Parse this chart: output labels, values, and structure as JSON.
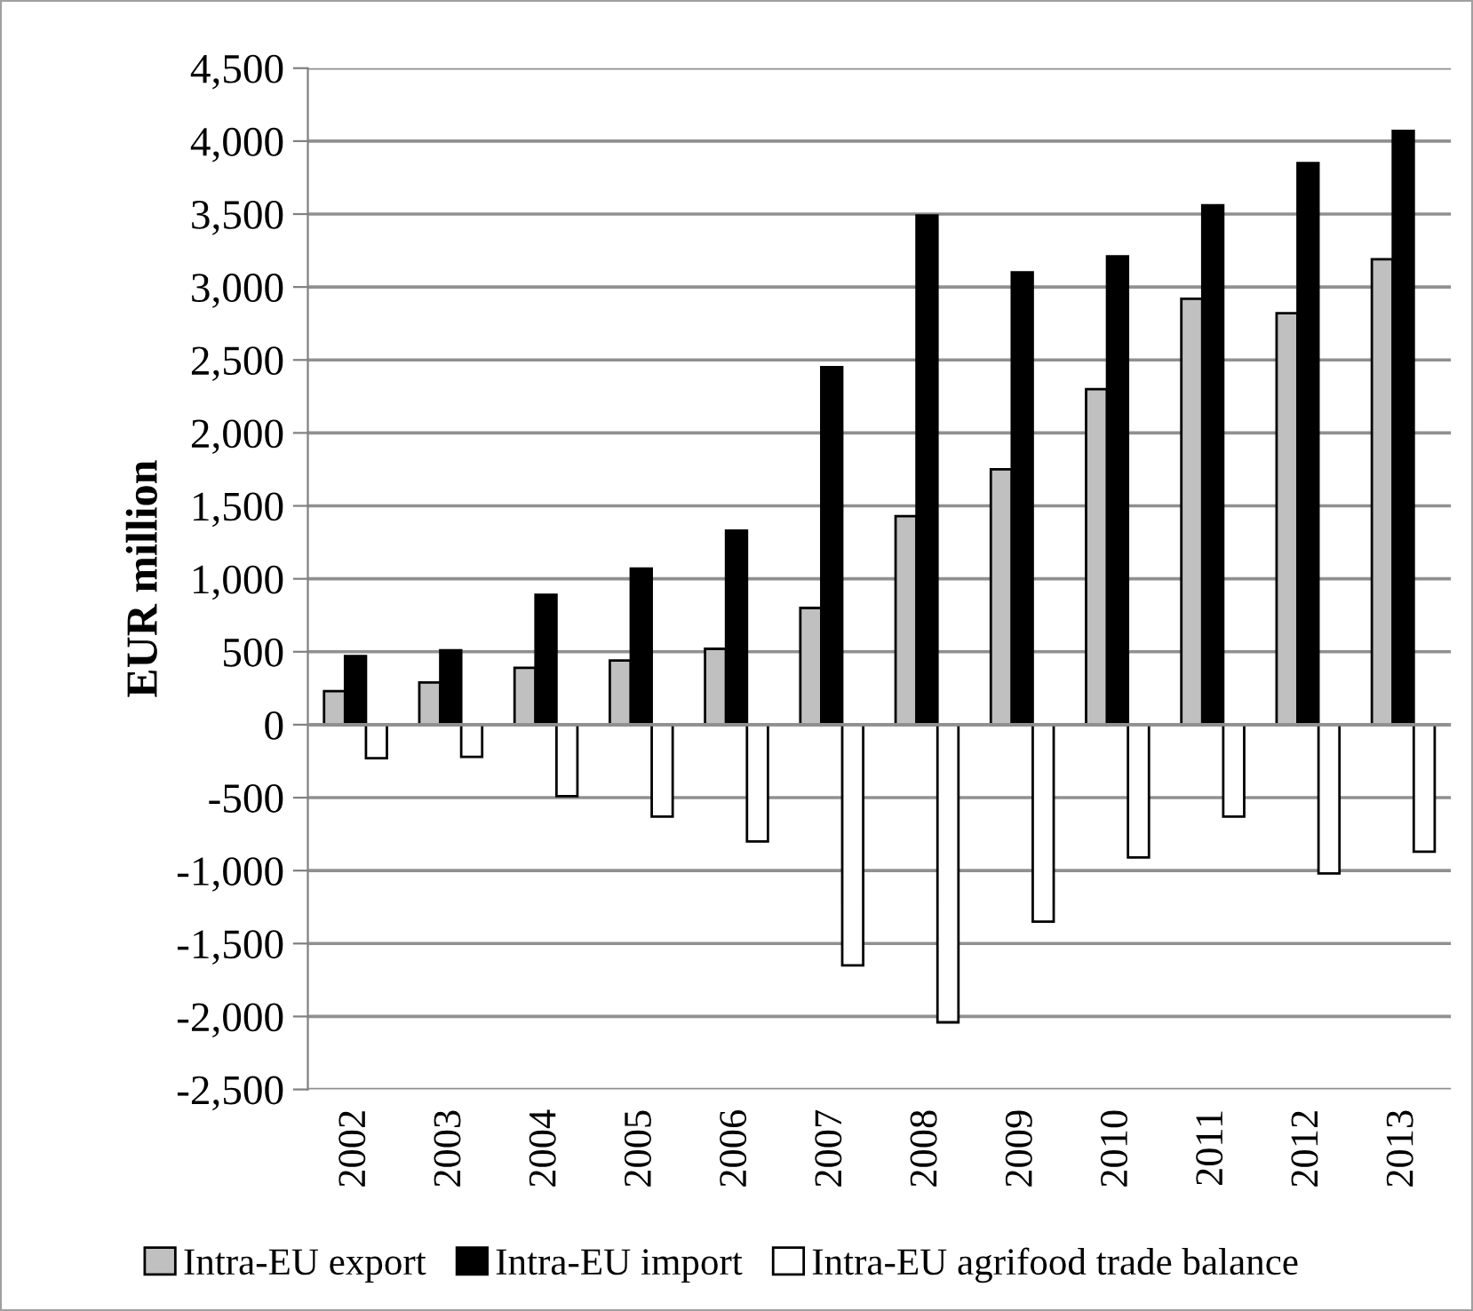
{
  "chart_data": {
    "type": "bar",
    "ylabel": "EUR million",
    "categories": [
      "2002",
      "2003",
      "2004",
      "2005",
      "2006",
      "2007",
      "2008",
      "2009",
      "2010",
      "2011",
      "2012",
      "2013"
    ],
    "series": [
      {
        "name": "Intra-EU export",
        "color": "#c0c0c0",
        "values": [
          230,
          290,
          390,
          440,
          520,
          800,
          1430,
          1750,
          2300,
          2920,
          2820,
          3190
        ]
      },
      {
        "name": "Intra-EU import",
        "color": "#000000",
        "values": [
          470,
          510,
          890,
          1070,
          1330,
          2450,
          3490,
          3100,
          3210,
          3560,
          3850,
          4070
        ]
      },
      {
        "name": "Intra-EU agrifood trade balance",
        "color": "#ffffff",
        "values": [
          -230,
          -220,
          -490,
          -630,
          -800,
          -1650,
          -2040,
          -1350,
          -910,
          -630,
          -1020,
          -870
        ]
      }
    ],
    "ylim": [
      -2500,
      4500
    ],
    "yticks": [
      {
        "value": -2500,
        "label": "-2,500"
      },
      {
        "value": -2000,
        "label": "-2,000"
      },
      {
        "value": -1500,
        "label": "-1,500"
      },
      {
        "value": -1000,
        "label": "-1,000"
      },
      {
        "value": -500,
        "label": "-500"
      },
      0,
      500,
      {
        "value": 1000,
        "label": "1,000"
      },
      {
        "value": 1500,
        "label": "1,500"
      },
      {
        "value": 2000,
        "label": "2,000"
      },
      {
        "value": 2500,
        "label": "2,500"
      },
      {
        "value": 3000,
        "label": "3,000"
      },
      {
        "value": 3500,
        "label": "3,500"
      },
      {
        "value": 4000,
        "label": "4,000"
      },
      {
        "value": 4500,
        "label": "4,500"
      }
    ],
    "grid": "y",
    "legend": "bottom"
  }
}
